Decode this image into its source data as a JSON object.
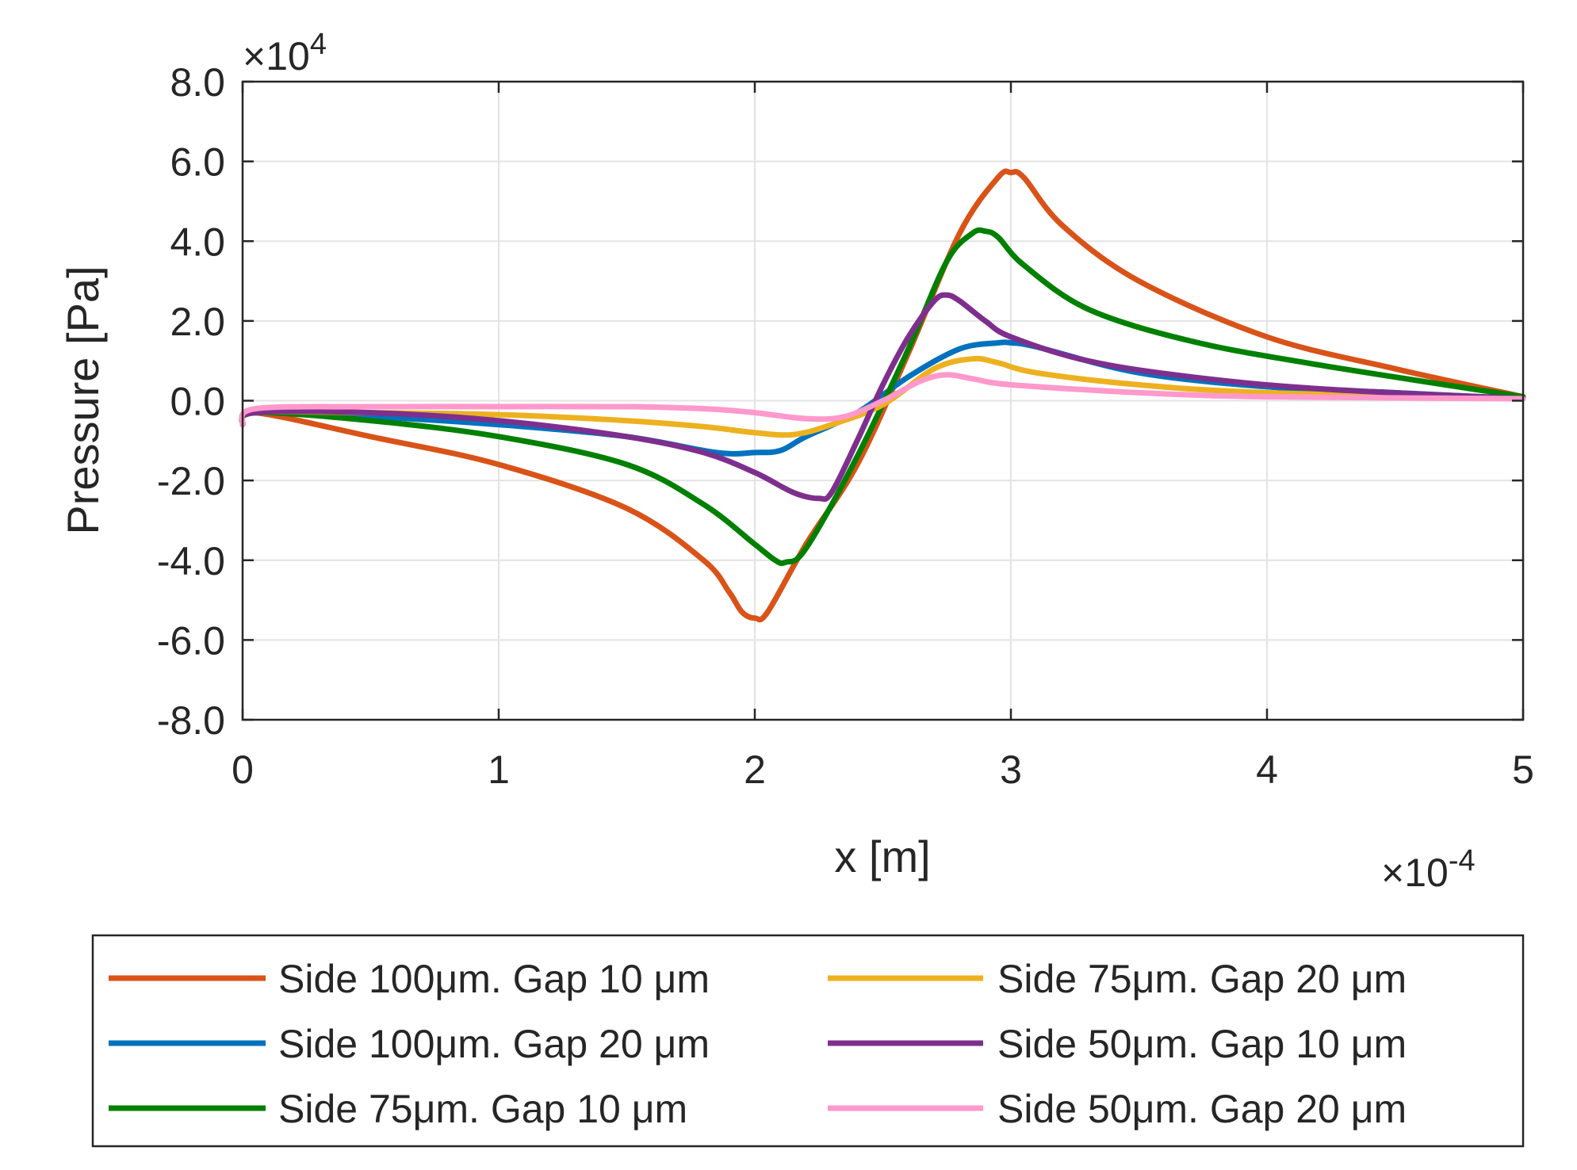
{
  "chart_data": {
    "type": "line",
    "title": "",
    "xlabel": "x [m]",
    "ylabel": "Pressure [Pa]",
    "x_multiplier": {
      "base": "10",
      "exponent": "-4"
    },
    "y_multiplier": {
      "base": "10",
      "exponent": "4"
    },
    "xlim": [
      0,
      5
    ],
    "ylim": [
      -8,
      8
    ],
    "x_ticks": [
      "0",
      "1",
      "2",
      "3",
      "4",
      "5"
    ],
    "y_ticks": [
      "8.0",
      "6.0",
      "4.0",
      "2.0",
      "0.0",
      "-2.0",
      "-4.0",
      "-6.0",
      "-8.0"
    ],
    "grid": true,
    "legend_position": "bottom",
    "series": [
      {
        "name": "Side 100μm. Gap 10 μm",
        "color": "#d95319",
        "x": [
          0,
          0.05,
          0.5,
          1.0,
          1.5,
          1.8,
          1.9,
          1.95,
          2.0,
          2.05,
          2.2,
          2.4,
          2.6,
          2.8,
          2.95,
          3.0,
          3.05,
          3.2,
          3.5,
          4.0,
          4.5,
          5.0
        ],
        "y": [
          -0.6,
          -0.3,
          -0.9,
          -1.6,
          -2.7,
          -4.0,
          -4.8,
          -5.3,
          -5.45,
          -5.3,
          -3.6,
          -1.6,
          1.2,
          4.2,
          5.6,
          5.72,
          5.6,
          4.4,
          3.0,
          1.6,
          0.8,
          0.1
        ]
      },
      {
        "name": "Side 100μm. Gap 20 μm",
        "color": "#0072bd",
        "x": [
          0,
          0.05,
          0.5,
          1.0,
          1.5,
          1.85,
          2.0,
          2.1,
          2.2,
          2.4,
          2.6,
          2.8,
          2.95,
          3.0,
          3.1,
          3.5,
          4.0,
          4.5,
          5.0
        ],
        "y": [
          -0.6,
          -0.3,
          -0.4,
          -0.6,
          -0.9,
          -1.3,
          -1.3,
          -1.25,
          -0.9,
          -0.3,
          0.6,
          1.3,
          1.45,
          1.45,
          1.35,
          0.7,
          0.35,
          0.2,
          0.05
        ]
      },
      {
        "name": "Side 75μm. Gap 10 μm",
        "color": "#008000",
        "x": [
          0,
          0.05,
          0.5,
          1.0,
          1.5,
          1.8,
          2.0,
          2.08,
          2.12,
          2.2,
          2.4,
          2.6,
          2.75,
          2.85,
          2.9,
          2.95,
          3.05,
          3.3,
          3.7,
          4.2,
          5.0
        ],
        "y": [
          -0.6,
          -0.3,
          -0.5,
          -0.9,
          -1.6,
          -2.6,
          -3.6,
          -4.0,
          -4.05,
          -3.7,
          -1.4,
          1.3,
          3.5,
          4.2,
          4.25,
          4.1,
          3.4,
          2.3,
          1.5,
          0.9,
          0.1
        ]
      },
      {
        "name": "Side 75μm. Gap 20 μm",
        "color": "#edb120",
        "x": [
          0,
          0.05,
          0.5,
          1.0,
          1.5,
          1.8,
          2.0,
          2.15,
          2.3,
          2.5,
          2.7,
          2.85,
          2.95,
          3.1,
          3.5,
          4.0,
          5.0
        ],
        "y": [
          -0.6,
          -0.3,
          -0.3,
          -0.35,
          -0.5,
          -0.65,
          -0.8,
          -0.85,
          -0.6,
          -0.1,
          0.8,
          1.05,
          0.95,
          0.7,
          0.4,
          0.2,
          0.05
        ]
      },
      {
        "name": "Side 50μm. Gap 10 μm",
        "color": "#7e2f8e",
        "x": [
          0,
          0.05,
          0.5,
          1.0,
          1.5,
          1.8,
          2.0,
          2.15,
          2.25,
          2.3,
          2.4,
          2.5,
          2.6,
          2.7,
          2.75,
          2.8,
          2.9,
          3.0,
          3.3,
          3.7,
          4.2,
          5.0
        ],
        "y": [
          -0.6,
          -0.3,
          -0.3,
          -0.5,
          -0.9,
          -1.3,
          -1.8,
          -2.3,
          -2.45,
          -2.3,
          -1.0,
          0.4,
          1.6,
          2.5,
          2.65,
          2.5,
          2.0,
          1.6,
          1.0,
          0.6,
          0.3,
          0.05
        ]
      },
      {
        "name": "Side 50μm. Gap 20 μm",
        "color": "#ff99cc",
        "x": [
          0,
          0.05,
          0.5,
          1.0,
          1.5,
          1.8,
          2.0,
          2.2,
          2.35,
          2.5,
          2.65,
          2.75,
          2.85,
          3.0,
          3.5,
          4.0,
          5.0
        ],
        "y": [
          -0.6,
          -0.2,
          -0.15,
          -0.15,
          -0.15,
          -0.2,
          -0.3,
          -0.45,
          -0.4,
          0.0,
          0.5,
          0.65,
          0.55,
          0.4,
          0.2,
          0.1,
          0.05
        ]
      }
    ]
  }
}
